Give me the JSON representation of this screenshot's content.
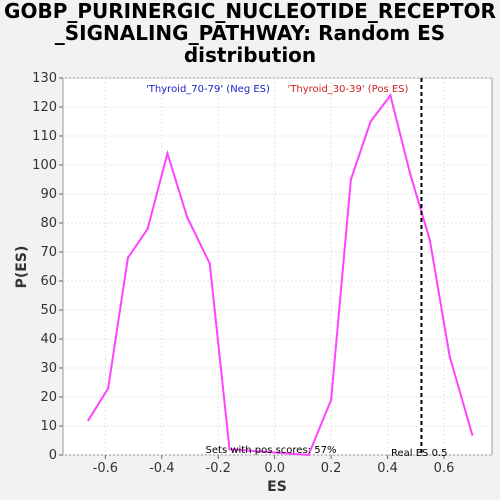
{
  "chart_data": {
    "type": "line",
    "title_line1": "GOBP_PURINERGIC_NUCLEOTIDE_RECEPTOR",
    "title_line2": "_SIGNALING_PATHWAY: Random ES",
    "title_line3": "distribution",
    "xlabel": "ES",
    "ylabel": "P(ES)",
    "xlim": [
      -0.75,
      0.77
    ],
    "ylim": [
      0,
      130
    ],
    "xticks": [
      -0.6,
      -0.4,
      -0.2,
      0.0,
      0.2,
      0.4,
      0.6
    ],
    "xtick_labels": [
      "-0.6",
      "-0.4",
      "-0.2",
      "0.0",
      "0.2",
      "0.4",
      "0.6"
    ],
    "yticks": [
      0,
      10,
      20,
      30,
      40,
      50,
      60,
      70,
      80,
      90,
      100,
      110,
      120,
      130
    ],
    "ytick_labels": [
      "0",
      "10",
      "20",
      "30",
      "40",
      "50",
      "60",
      "70",
      "80",
      "90",
      "100",
      "110",
      "120",
      "130"
    ],
    "grid": true,
    "series": [
      {
        "color": "#ff44ff",
        "x": [
          -0.66,
          -0.59,
          -0.52,
          -0.45,
          -0.38,
          -0.31,
          -0.23,
          -0.16,
          0.12,
          0.2,
          0.27,
          0.34,
          0.41,
          0.48,
          0.55,
          0.62,
          0.7
        ],
        "y": [
          12,
          23,
          68,
          78,
          104,
          82,
          66,
          2,
          0,
          19,
          95,
          115,
          124,
          97,
          74,
          34,
          7
        ]
      }
    ],
    "legend": [
      {
        "label": "'Thyroid_70-79' (Neg ES)",
        "color": "#2222cc"
      },
      {
        "label": "'Thyroid_30-39' (Pos ES)",
        "color": "#cc2222"
      }
    ],
    "real_es": 0.52,
    "real_es_label": "Real ES 0.5",
    "pos_scores_label": "Sets with pos scores: 57%"
  }
}
